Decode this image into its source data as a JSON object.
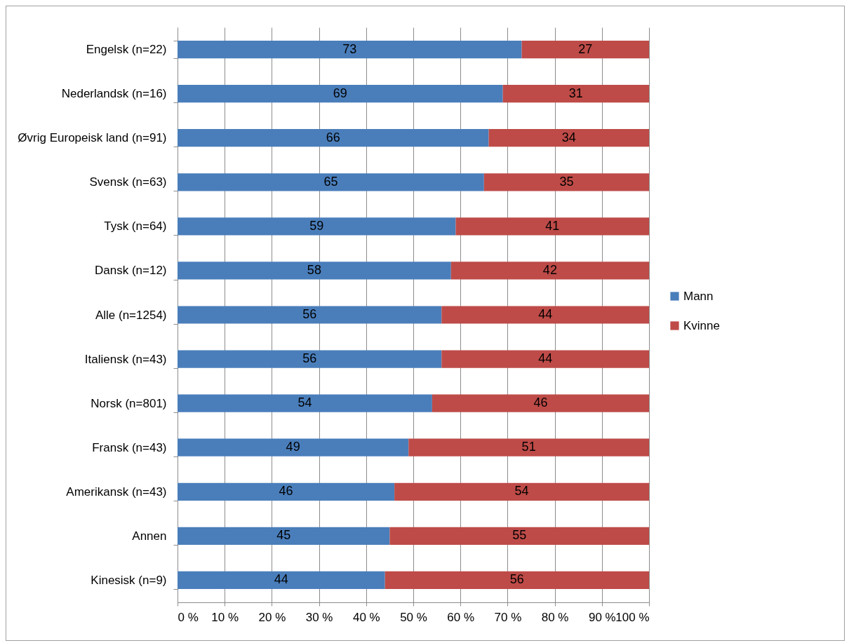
{
  "chart_data": {
    "type": "bar",
    "orientation": "horizontal",
    "stacked": true,
    "data_labels": true,
    "grid": "x",
    "legend": "right",
    "categories": [
      "Engelsk (n=22)",
      "Nederlandsk (n=16)",
      "Øvrig Europeisk land (n=91)",
      "Svensk (n=63)",
      "Tysk (n=64)",
      "Dansk (n=12)",
      "Alle (n=1254)",
      "Italiensk (n=43)",
      "Norsk (n=801)",
      "Fransk (n=43)",
      "Amerikansk (n=43)",
      "Annen",
      "Kinesisk (n=9)"
    ],
    "series": [
      {
        "name": "Mann",
        "color": "#4a7ebb",
        "values": [
          73,
          69,
          66,
          65,
          59,
          58,
          56,
          56,
          54,
          49,
          46,
          45,
          44
        ]
      },
      {
        "name": "Kvinne",
        "color": "#be4b48",
        "values": [
          27,
          31,
          34,
          35,
          41,
          42,
          44,
          44,
          46,
          51,
          54,
          55,
          56
        ]
      }
    ],
    "xlim": [
      0,
      100
    ],
    "xticks": [
      {
        "value": 0,
        "label": "0 %"
      },
      {
        "value": 10,
        "label": "10 %"
      },
      {
        "value": 20,
        "label": "20 %"
      },
      {
        "value": 30,
        "label": "30 %"
      },
      {
        "value": 40,
        "label": "40 %"
      },
      {
        "value": 50,
        "label": "50 %"
      },
      {
        "value": 60,
        "label": "60 %"
      },
      {
        "value": 70,
        "label": "70 %"
      },
      {
        "value": 80,
        "label": "80 %"
      },
      {
        "value": 90,
        "label": "90 %"
      },
      {
        "value": 100,
        "label": "100 %"
      }
    ]
  }
}
